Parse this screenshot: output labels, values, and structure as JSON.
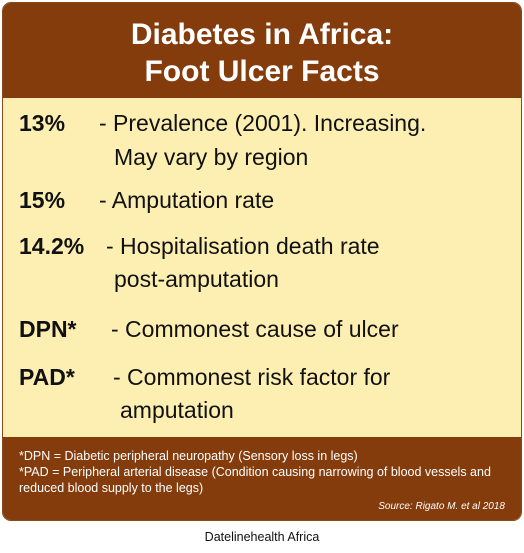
{
  "header": {
    "line1": "Diabetes in Africa:",
    "line2": "Foot Ulcer Facts"
  },
  "facts": [
    {
      "key": "13%",
      "desc_line1": "- Prevalence (2001). Increasing.",
      "desc_line2": "May vary by region"
    },
    {
      "key": "15%",
      "desc_line1": "- Amputation rate",
      "desc_line2": ""
    },
    {
      "key": "14.2%",
      "desc_line1": "- Hospitalisation death rate",
      "desc_line2": "post-amputation"
    },
    {
      "key": "DPN*",
      "desc_line1": "- Commonest cause of ulcer",
      "desc_line2": ""
    },
    {
      "key": "PAD*",
      "desc_line1": "- Commonest risk factor for",
      "desc_line2": "amputation"
    }
  ],
  "footer": {
    "note1": "*DPN = Diabetic peripheral neuropathy (Sensory loss in legs)",
    "note2": "*PAD = Peripheral arterial disease (Condition causing narrowing of blood vessels and reduced blood supply to the legs)",
    "source": "Source: Rigato M. et al 2018"
  },
  "credit": "Datelinehealth Africa",
  "colors": {
    "header_bg": "#843c0c",
    "body_bg": "#fdefb2",
    "text": "#111111"
  }
}
